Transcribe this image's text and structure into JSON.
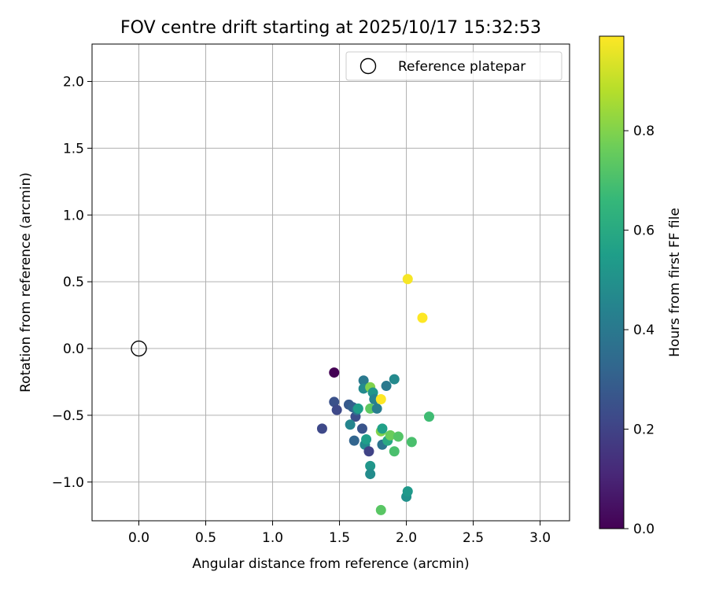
{
  "chart_data": {
    "type": "scatter",
    "title": "FOV centre drift starting at 2025/10/17 15:32:53",
    "xlabel": "Angular distance from reference (arcmin)",
    "ylabel": "Rotation from reference (arcmin)",
    "xlim": [
      -0.35,
      3.22
    ],
    "ylim": [
      -1.29,
      2.28
    ],
    "xticks": [
      0.0,
      0.5,
      1.0,
      1.5,
      2.0,
      2.5,
      3.0
    ],
    "xtick_labels": [
      "0.0",
      "0.5",
      "1.0",
      "1.5",
      "2.0",
      "2.5",
      "3.0"
    ],
    "yticks": [
      -1.0,
      -0.5,
      0.0,
      0.5,
      1.0,
      1.5,
      2.0
    ],
    "ytick_labels": [
      "−1.0",
      "−0.5",
      "0.0",
      "0.5",
      "1.0",
      "1.5",
      "2.0"
    ],
    "grid": true,
    "legend": {
      "placement": "upper-right",
      "entries": [
        {
          "label": "Reference platepar",
          "marker": "open-circle"
        }
      ]
    },
    "reference_point": {
      "x": 0.0,
      "y": 0.0
    },
    "colorbar": {
      "label": "Hours from first FF file",
      "colormap": "viridis",
      "range": [
        0.0,
        0.99
      ],
      "ticks": [
        0.0,
        0.2,
        0.4,
        0.6,
        0.8
      ],
      "tick_labels": [
        "0.0",
        "0.2",
        "0.4",
        "0.6",
        "0.8"
      ],
      "colormap_stops": [
        "#440154",
        "#482878",
        "#3e4989",
        "#31688e",
        "#26828e",
        "#1f9e89",
        "#35b779",
        "#6ece58",
        "#b5de2b",
        "#fde725"
      ]
    },
    "points": [
      {
        "x": 1.46,
        "y": -0.18,
        "c": 0.0
      },
      {
        "x": 1.37,
        "y": -0.6,
        "c": 0.22
      },
      {
        "x": 1.46,
        "y": -0.4,
        "c": 0.25
      },
      {
        "x": 1.48,
        "y": -0.46,
        "c": 0.22
      },
      {
        "x": 1.57,
        "y": -0.42,
        "c": 0.28
      },
      {
        "x": 1.6,
        "y": -0.44,
        "c": 0.3
      },
      {
        "x": 1.62,
        "y": -0.51,
        "c": 0.24
      },
      {
        "x": 1.61,
        "y": -0.69,
        "c": 0.32
      },
      {
        "x": 1.58,
        "y": -0.57,
        "c": 0.45
      },
      {
        "x": 1.63,
        "y": -0.46,
        "c": 0.38
      },
      {
        "x": 1.64,
        "y": -0.45,
        "c": 0.55
      },
      {
        "x": 1.67,
        "y": -0.6,
        "c": 0.26
      },
      {
        "x": 1.68,
        "y": -0.24,
        "c": 0.4
      },
      {
        "x": 1.68,
        "y": -0.3,
        "c": 0.47
      },
      {
        "x": 1.69,
        "y": -0.72,
        "c": 0.47
      },
      {
        "x": 1.7,
        "y": -0.68,
        "c": 0.55
      },
      {
        "x": 1.72,
        "y": -0.77,
        "c": 0.2
      },
      {
        "x": 1.73,
        "y": -0.29,
        "c": 0.8
      },
      {
        "x": 1.73,
        "y": -0.45,
        "c": 0.74
      },
      {
        "x": 1.73,
        "y": -0.88,
        "c": 0.52
      },
      {
        "x": 1.73,
        "y": -0.94,
        "c": 0.48
      },
      {
        "x": 1.75,
        "y": -0.33,
        "c": 0.52
      },
      {
        "x": 1.76,
        "y": -0.38,
        "c": 0.44
      },
      {
        "x": 1.78,
        "y": -0.45,
        "c": 0.42
      },
      {
        "x": 1.81,
        "y": -0.38,
        "c": 0.99
      },
      {
        "x": 1.81,
        "y": -0.62,
        "c": 0.8
      },
      {
        "x": 1.82,
        "y": -0.6,
        "c": 0.56
      },
      {
        "x": 1.82,
        "y": -0.72,
        "c": 0.38
      },
      {
        "x": 1.81,
        "y": -1.21,
        "c": 0.73
      },
      {
        "x": 1.85,
        "y": -0.28,
        "c": 0.4
      },
      {
        "x": 1.86,
        "y": -0.69,
        "c": 0.6
      },
      {
        "x": 1.88,
        "y": -0.65,
        "c": 0.76
      },
      {
        "x": 1.91,
        "y": -0.23,
        "c": 0.47
      },
      {
        "x": 1.91,
        "y": -0.77,
        "c": 0.7
      },
      {
        "x": 1.94,
        "y": -0.66,
        "c": 0.72
      },
      {
        "x": 2.0,
        "y": -1.11,
        "c": 0.5
      },
      {
        "x": 2.01,
        "y": -1.07,
        "c": 0.53
      },
      {
        "x": 2.01,
        "y": 0.52,
        "c": 0.98
      },
      {
        "x": 2.04,
        "y": -0.7,
        "c": 0.7
      },
      {
        "x": 2.12,
        "y": 0.23,
        "c": 0.99
      },
      {
        "x": 2.17,
        "y": -0.51,
        "c": 0.68
      }
    ]
  }
}
